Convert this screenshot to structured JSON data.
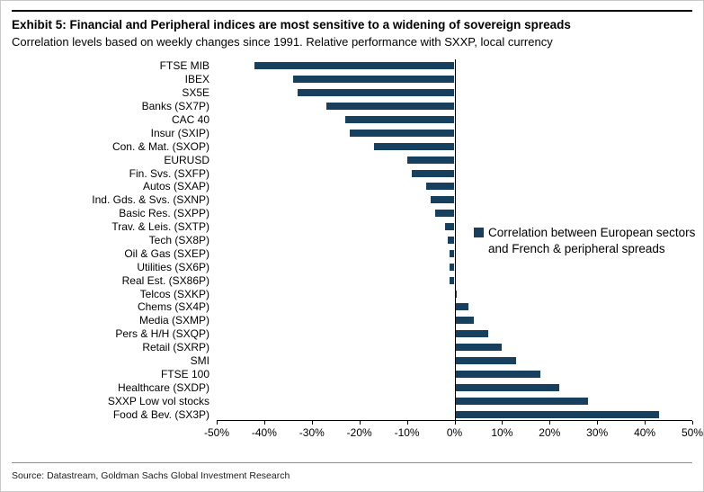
{
  "header": {
    "title": "Exhibit 5: Financial and Peripheral indices are most sensitive to a widening of sovereign spreads",
    "subtitle": "Correlation levels based on weekly changes since 1991. Relative performance with SXXP, local currency"
  },
  "chart_data": {
    "type": "bar",
    "orientation": "horizontal",
    "title": "Exhibit 5: Financial and Peripheral indices are most sensitive to a widening of sovereign spreads",
    "subtitle": "Correlation levels based on weekly changes since 1991. Relative performance with SXXP, local currency",
    "categories": [
      "FTSE MIB",
      "IBEX",
      "SX5E",
      "Banks (SX7P)",
      "CAC 40",
      "Insur (SXIP)",
      "Con. & Mat. (SXOP)",
      "EURUSD",
      "Fin. Svs. (SXFP)",
      "Autos (SXAP)",
      "Ind. Gds. & Svs. (SXNP)",
      "Basic Res. (SXPP)",
      "Trav. & Leis. (SXTP)",
      "Tech (SX8P)",
      "Oil & Gas (SXEP)",
      "Utilities (SX6P)",
      "Real Est. (SX86P)",
      "Telcos (SXKP)",
      "Chems (SX4P)",
      "Media (SXMP)",
      "Pers & H/H (SXQP)",
      "Retail (SXRP)",
      "SMI",
      "FTSE 100",
      "Healthcare (SXDP)",
      "SXXP Low vol stocks",
      "Food & Bev. (SX3P)"
    ],
    "values": [
      -42,
      -34,
      -33,
      -27,
      -23,
      -22,
      -17,
      -10,
      -9,
      -6,
      -5,
      -4,
      -2,
      -1.5,
      -1,
      -1,
      -1,
      0.5,
      3,
      4,
      7,
      10,
      13,
      18,
      22,
      28,
      43
    ],
    "x_ticks": [
      "-50%",
      "-40%",
      "-30%",
      "-20%",
      "-10%",
      "0%",
      "10%",
      "20%",
      "30%",
      "40%",
      "50%"
    ],
    "xlim": [
      -50,
      50
    ],
    "grid": false,
    "bar_color": "#17405F",
    "legend": "Correlation between European sectors and French & peripheral spreads",
    "legend_position": "middle-right"
  },
  "footer": {
    "source": "Source: Datastream, Goldman Sachs Global Investment Research"
  }
}
